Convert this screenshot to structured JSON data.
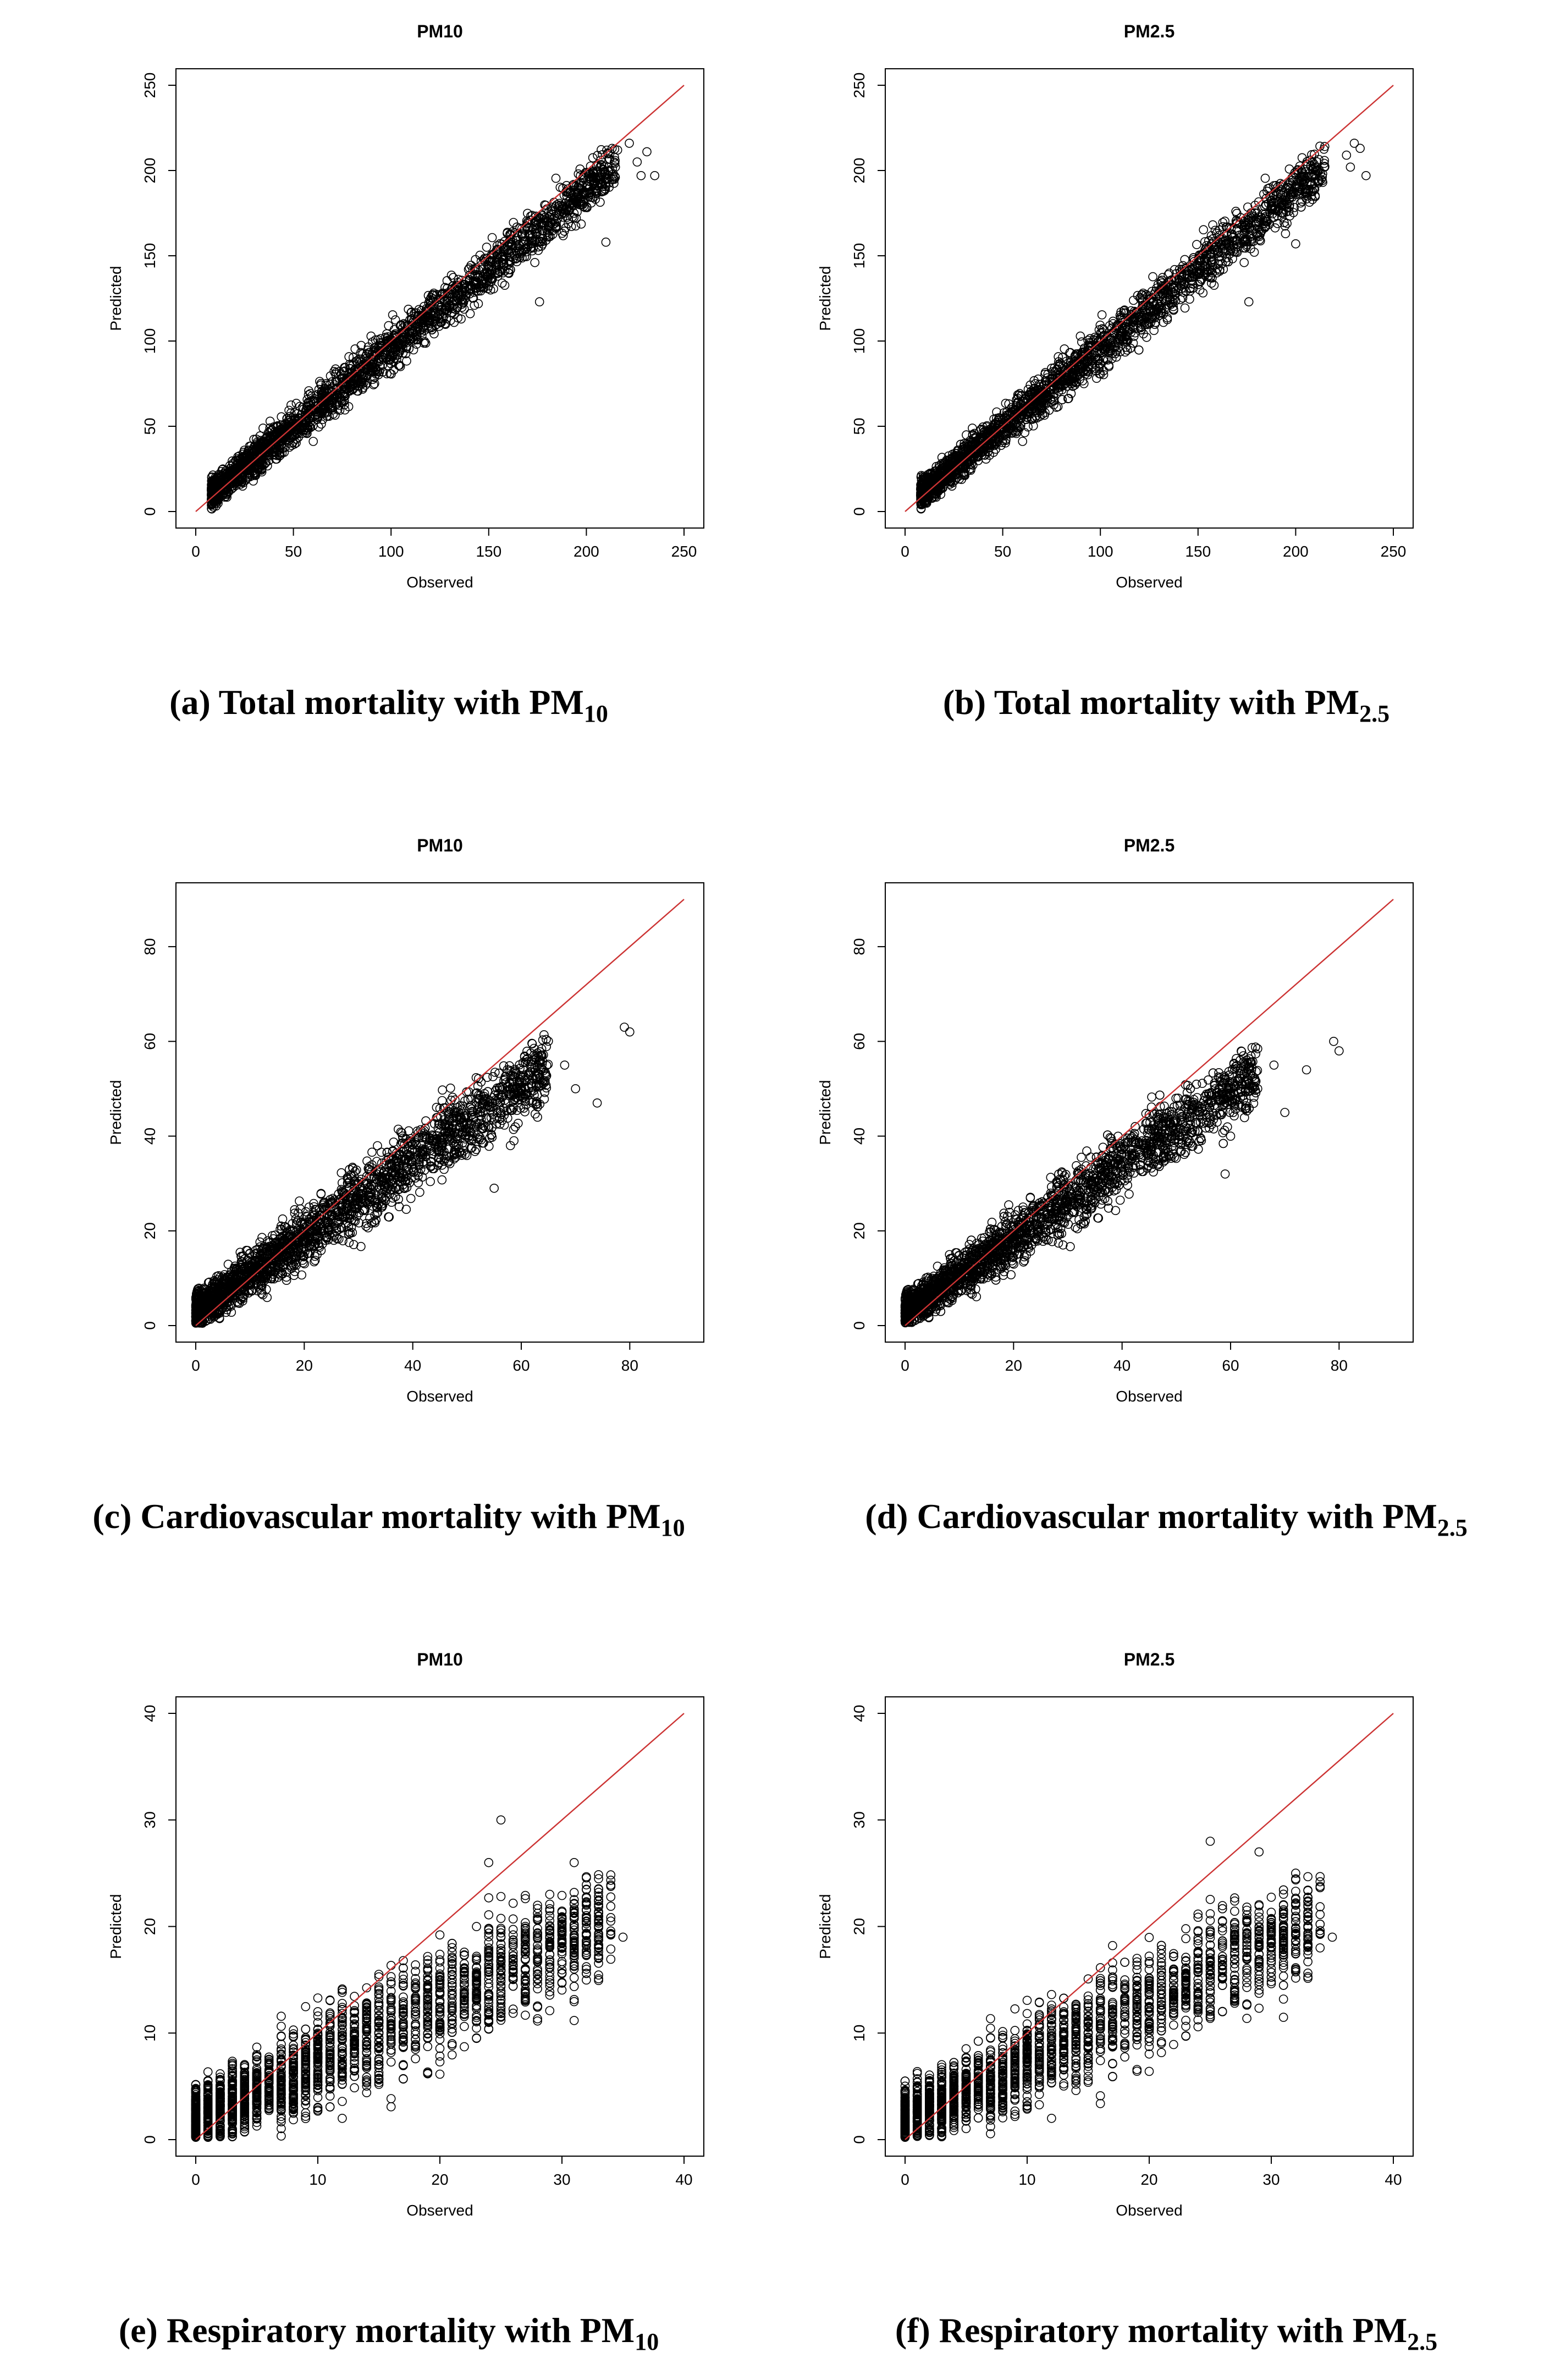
{
  "captions": [
    {
      "text": "(a) Total mortality with PM",
      "sub": "10"
    },
    {
      "text": "(b) Total mortality with PM",
      "sub": "2.5"
    },
    {
      "text": "(c) Cardiovascular mortality with PM",
      "sub": "10"
    },
    {
      "text": "(d) Cardiovascular mortality with PM",
      "sub": "2.5"
    },
    {
      "text": "(e) Respiratory mortality with PM",
      "sub": "10"
    },
    {
      "text": "(f) Respiratory mortality with PM",
      "sub": "2.5"
    }
  ],
  "colors": {
    "points": "#000000",
    "reference_line": "#cc3333",
    "frame": "#000000"
  },
  "chart_data": [
    {
      "type": "scatter",
      "title": "PM10",
      "xlabel": "Observed",
      "ylabel": "Predicted",
      "xlim": [
        0,
        250
      ],
      "ylim": [
        0,
        250
      ],
      "xticks": [
        0,
        50,
        100,
        150,
        200,
        250
      ],
      "yticks": [
        0,
        50,
        100,
        150,
        200,
        250
      ],
      "reference_line": [
        [
          0,
          0
        ],
        [
          250,
          250
        ]
      ],
      "trend": {
        "min": 8,
        "max": 215,
        "discrete": false,
        "slope": 0.93,
        "intercept": 3,
        "spread": 7
      },
      "extreme_points": [
        [
          222,
          216
        ],
        [
          226,
          205
        ],
        [
          231,
          211
        ],
        [
          228,
          197
        ],
        [
          235,
          197
        ],
        [
          210,
          158
        ],
        [
          176,
          123
        ],
        [
          216,
          212
        ]
      ]
    },
    {
      "type": "scatter",
      "title": "PM2.5",
      "xlabel": "Observed",
      "ylabel": "Predicted",
      "xlim": [
        0,
        250
      ],
      "ylim": [
        0,
        250
      ],
      "xticks": [
        0,
        50,
        100,
        150,
        200,
        250
      ],
      "yticks": [
        0,
        50,
        100,
        150,
        200,
        250
      ],
      "reference_line": [
        [
          0,
          0
        ],
        [
          250,
          250
        ]
      ],
      "trend": {
        "min": 8,
        "max": 215,
        "discrete": false,
        "slope": 0.93,
        "intercept": 3,
        "spread": 7
      },
      "extreme_points": [
        [
          230,
          216
        ],
        [
          226,
          209
        ],
        [
          233,
          213
        ],
        [
          236,
          197
        ],
        [
          228,
          202
        ],
        [
          200,
          157
        ],
        [
          176,
          123
        ],
        [
          210,
          200
        ]
      ]
    },
    {
      "type": "scatter",
      "title": "PM10",
      "xlabel": "Observed",
      "ylabel": "Predicted",
      "xlim": [
        0,
        90
      ],
      "ylim": [
        0,
        90
      ],
      "xticks": [
        0,
        20,
        40,
        60,
        80
      ],
      "yticks": [
        0,
        20,
        40,
        60,
        80
      ],
      "reference_line": [
        [
          0,
          0
        ],
        [
          90,
          90
        ]
      ],
      "trend": {
        "min": 0,
        "max": 65,
        "discrete": false,
        "slope": 0.8,
        "intercept": 3,
        "spread": 3.6
      },
      "extreme_points": [
        [
          79,
          63
        ],
        [
          80,
          62
        ],
        [
          70,
          50
        ],
        [
          68,
          55
        ],
        [
          60,
          49
        ],
        [
          58,
          38
        ],
        [
          74,
          47
        ],
        [
          63,
          44
        ],
        [
          55,
          29
        ]
      ]
    },
    {
      "type": "scatter",
      "title": "PM2.5",
      "xlabel": "Observed",
      "ylabel": "Predicted",
      "xlim": [
        0,
        90
      ],
      "ylim": [
        0,
        90
      ],
      "xticks": [
        0,
        20,
        40,
        60,
        80
      ],
      "yticks": [
        0,
        20,
        40,
        60,
        80
      ],
      "reference_line": [
        [
          0,
          0
        ],
        [
          90,
          90
        ]
      ],
      "trend": {
        "min": 0,
        "max": 65,
        "discrete": false,
        "slope": 0.78,
        "intercept": 3,
        "spread": 3.4
      },
      "extreme_points": [
        [
          79,
          60
        ],
        [
          80,
          58
        ],
        [
          74,
          54
        ],
        [
          68,
          55
        ],
        [
          70,
          45
        ],
        [
          65,
          50
        ],
        [
          60,
          40
        ],
        [
          59,
          32
        ],
        [
          63,
          47
        ]
      ]
    },
    {
      "type": "scatter",
      "title": "PM10",
      "xlabel": "Observed",
      "ylabel": "Predicted",
      "xlim": [
        0,
        40
      ],
      "ylim": [
        0,
        40
      ],
      "xticks": [
        0,
        10,
        20,
        30,
        40
      ],
      "yticks": [
        0,
        10,
        20,
        30,
        40
      ],
      "reference_line": [
        [
          0,
          0
        ],
        [
          40,
          40
        ]
      ],
      "trend": {
        "min": 0,
        "max": 34,
        "discrete": true,
        "slope": 0.55,
        "intercept": 2,
        "spread": 2.6
      },
      "extreme_points": [
        [
          25,
          30
        ],
        [
          24,
          26
        ],
        [
          31,
          26
        ],
        [
          35,
          19
        ],
        [
          32,
          22
        ],
        [
          30,
          18
        ],
        [
          28,
          15
        ],
        [
          33,
          17
        ],
        [
          12,
          2
        ],
        [
          24,
          11
        ]
      ]
    },
    {
      "type": "scatter",
      "title": "PM2.5",
      "xlabel": "Observed",
      "ylabel": "Predicted",
      "xlim": [
        0,
        40
      ],
      "ylim": [
        0,
        40
      ],
      "xticks": [
        0,
        10,
        20,
        30,
        40
      ],
      "yticks": [
        0,
        10,
        20,
        30,
        40
      ],
      "reference_line": [
        [
          0,
          0
        ],
        [
          40,
          40
        ]
      ],
      "trend": {
        "min": 0,
        "max": 34,
        "discrete": true,
        "slope": 0.55,
        "intercept": 2,
        "spread": 2.5
      },
      "extreme_points": [
        [
          25,
          28
        ],
        [
          29,
          27
        ],
        [
          32,
          25
        ],
        [
          35,
          19
        ],
        [
          32,
          22
        ],
        [
          30,
          20
        ],
        [
          28,
          17
        ],
        [
          32,
          16
        ],
        [
          12,
          2
        ],
        [
          26,
          12
        ]
      ]
    }
  ]
}
